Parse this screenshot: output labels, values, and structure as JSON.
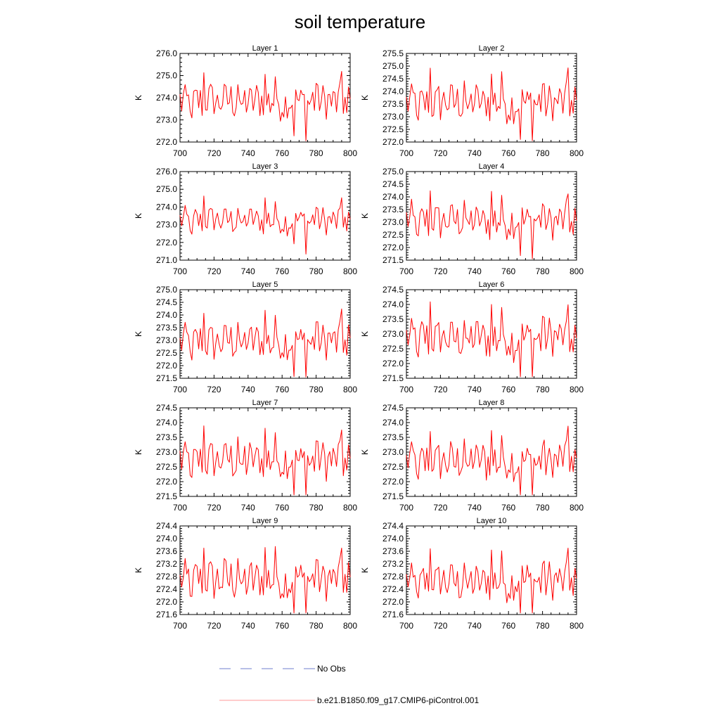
{
  "figure": {
    "title": "soil temperature"
  },
  "legend": {
    "entries": [
      {
        "label": "No Obs",
        "color": "#6f7fcf",
        "dash": "dashed"
      },
      {
        "label": "b.e21.B1850.f09_g17.CMIP6-piControl.001",
        "color": "#ff0000",
        "dash": "solid"
      }
    ]
  },
  "colors": {
    "series": "#ff0000",
    "axis": "#000000"
  },
  "chart_data": [
    {
      "type": "line",
      "title": "Layer 1",
      "xlabel": "",
      "ylabel": "K",
      "xlim": [
        700,
        800
      ],
      "ylim": [
        272.0,
        276.0
      ],
      "xticks": [
        700,
        720,
        740,
        760,
        780,
        800
      ],
      "xticklabels": [
        "700",
        "720",
        "740",
        "760",
        "780",
        "800"
      ],
      "yticks": [
        272.0,
        273.0,
        274.0,
        275.0,
        276.0
      ],
      "yticklabels": [
        "272.0",
        "273.0",
        "274.0",
        "275.0",
        "276.0"
      ],
      "x": [],
      "values": []
    },
    {
      "type": "line",
      "title": "Layer 2",
      "xlabel": "",
      "ylabel": "K",
      "xlim": [
        700,
        800
      ],
      "ylim": [
        272.0,
        275.5
      ],
      "xticks": [
        700,
        720,
        740,
        760,
        780,
        800
      ],
      "xticklabels": [
        "700",
        "720",
        "740",
        "760",
        "780",
        "800"
      ],
      "yticks": [
        272.0,
        272.5,
        273.0,
        273.5,
        274.0,
        274.5,
        275.0,
        275.5
      ],
      "yticklabels": [
        "272.0",
        "272.5",
        "273.0",
        "273.5",
        "274.0",
        "274.5",
        "275.0",
        "275.5"
      ],
      "x": [],
      "values": []
    },
    {
      "type": "line",
      "title": "Layer 3",
      "xlabel": "",
      "ylabel": "K",
      "xlim": [
        700,
        800
      ],
      "ylim": [
        271.0,
        276.0
      ],
      "xticks": [
        700,
        720,
        740,
        760,
        780,
        800
      ],
      "xticklabels": [
        "700",
        "720",
        "740",
        "760",
        "780",
        "800"
      ],
      "yticks": [
        271.0,
        272.0,
        273.0,
        274.0,
        275.0,
        276.0
      ],
      "yticklabels": [
        "271.0",
        "272.0",
        "273.0",
        "274.0",
        "275.0",
        "276.0"
      ],
      "x": [],
      "values": []
    },
    {
      "type": "line",
      "title": "Layer 4",
      "xlabel": "",
      "ylabel": "K",
      "xlim": [
        700,
        800
      ],
      "ylim": [
        271.5,
        275.0
      ],
      "xticks": [
        700,
        720,
        740,
        760,
        780,
        800
      ],
      "xticklabels": [
        "700",
        "720",
        "740",
        "760",
        "780",
        "800"
      ],
      "yticks": [
        271.5,
        272.0,
        272.5,
        273.0,
        273.5,
        274.0,
        274.5,
        275.0
      ],
      "yticklabels": [
        "271.5",
        "272.0",
        "272.5",
        "273.0",
        "273.5",
        "274.0",
        "274.5",
        "275.0"
      ],
      "x": [],
      "values": []
    },
    {
      "type": "line",
      "title": "Layer 5",
      "xlabel": "",
      "ylabel": "K",
      "xlim": [
        700,
        800
      ],
      "ylim": [
        271.5,
        275.0
      ],
      "xticks": [
        700,
        720,
        740,
        760,
        780,
        800
      ],
      "xticklabels": [
        "700",
        "720",
        "740",
        "760",
        "780",
        "800"
      ],
      "yticks": [
        271.5,
        272.0,
        272.5,
        273.0,
        273.5,
        274.0,
        274.5,
        275.0
      ],
      "yticklabels": [
        "271.5",
        "272.0",
        "272.5",
        "273.0",
        "273.5",
        "274.0",
        "274.5",
        "275.0"
      ],
      "x": [],
      "values": []
    },
    {
      "type": "line",
      "title": "Layer 6",
      "xlabel": "",
      "ylabel": "K",
      "xlim": [
        700,
        800
      ],
      "ylim": [
        271.5,
        274.5
      ],
      "xticks": [
        700,
        720,
        740,
        760,
        780,
        800
      ],
      "xticklabels": [
        "700",
        "720",
        "740",
        "760",
        "780",
        "800"
      ],
      "yticks": [
        271.5,
        272.0,
        272.5,
        273.0,
        273.5,
        274.0,
        274.5
      ],
      "yticklabels": [
        "271.5",
        "272.0",
        "272.5",
        "273.0",
        "273.5",
        "274.0",
        "274.5"
      ],
      "x": [],
      "values": []
    },
    {
      "type": "line",
      "title": "Layer 7",
      "xlabel": "",
      "ylabel": "K",
      "xlim": [
        700,
        800
      ],
      "ylim": [
        271.5,
        274.5
      ],
      "xticks": [
        700,
        720,
        740,
        760,
        780,
        800
      ],
      "xticklabels": [
        "700",
        "720",
        "740",
        "760",
        "780",
        "800"
      ],
      "yticks": [
        271.5,
        272.0,
        272.5,
        273.0,
        273.5,
        274.0,
        274.5
      ],
      "yticklabels": [
        "271.5",
        "272.0",
        "272.5",
        "273.0",
        "273.5",
        "274.0",
        "274.5"
      ],
      "x": [],
      "values": []
    },
    {
      "type": "line",
      "title": "Layer 8",
      "xlabel": "",
      "ylabel": "K",
      "xlim": [
        700,
        800
      ],
      "ylim": [
        271.5,
        274.5
      ],
      "xticks": [
        700,
        720,
        740,
        760,
        780,
        800
      ],
      "xticklabels": [
        "700",
        "720",
        "740",
        "760",
        "780",
        "800"
      ],
      "yticks": [
        271.5,
        272.0,
        272.5,
        273.0,
        273.5,
        274.0,
        274.5
      ],
      "yticklabels": [
        "271.5",
        "272.0",
        "272.5",
        "273.0",
        "273.5",
        "274.0",
        "274.5"
      ],
      "x": [],
      "values": []
    },
    {
      "type": "line",
      "title": "Layer 9",
      "xlabel": "",
      "ylabel": "K",
      "xlim": [
        700,
        800
      ],
      "ylim": [
        271.6,
        274.4
      ],
      "xticks": [
        700,
        720,
        740,
        760,
        780,
        800
      ],
      "xticklabels": [
        "700",
        "720",
        "740",
        "760",
        "780",
        "800"
      ],
      "yticks": [
        271.6,
        272.0,
        272.4,
        272.8,
        273.2,
        273.6,
        274.0,
        274.4
      ],
      "yticklabels": [
        "271.6",
        "272.0",
        "272.4",
        "272.8",
        "273.2",
        "273.6",
        "274.0",
        "274.4"
      ],
      "x": [],
      "values": []
    },
    {
      "type": "line",
      "title": "Layer 10",
      "xlabel": "",
      "ylabel": "K",
      "xlim": [
        700,
        800
      ],
      "ylim": [
        271.6,
        274.4
      ],
      "xticks": [
        700,
        720,
        740,
        760,
        780,
        800
      ],
      "xticklabels": [
        "700",
        "720",
        "740",
        "760",
        "780",
        "800"
      ],
      "yticks": [
        271.6,
        272.0,
        272.4,
        272.8,
        273.2,
        273.6,
        274.0,
        274.4
      ],
      "yticklabels": [
        "271.6",
        "272.0",
        "272.4",
        "272.8",
        "273.2",
        "273.6",
        "274.0",
        "274.4"
      ],
      "x": [],
      "values": []
    }
  ]
}
